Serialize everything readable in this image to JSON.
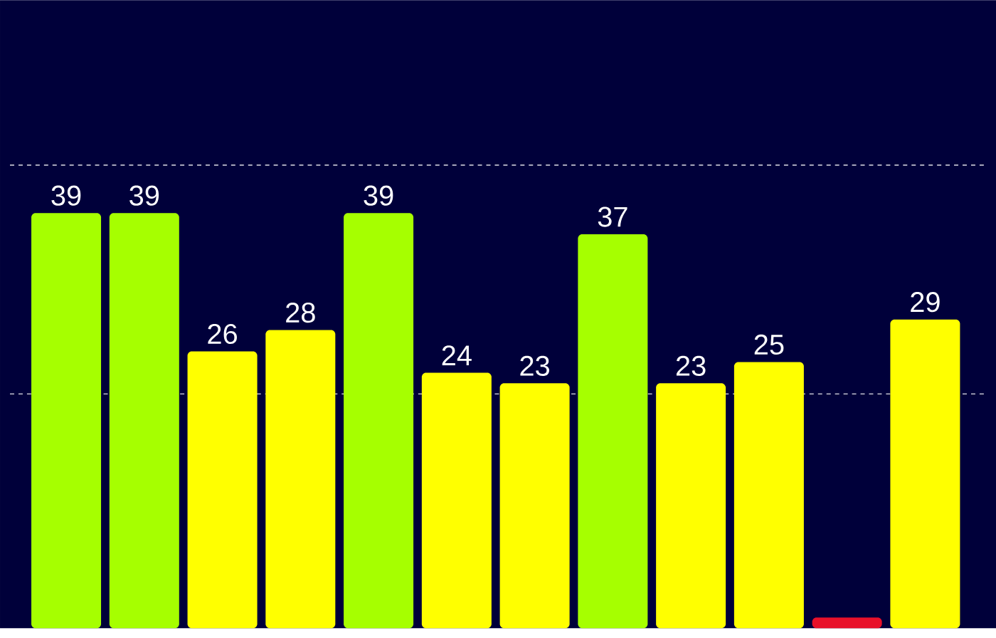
{
  "chart_data": {
    "type": "bar",
    "categories": [
      null,
      null,
      null,
      null,
      null,
      null,
      null,
      null,
      null,
      null,
      null,
      null
    ],
    "values": [
      39,
      39,
      26,
      28,
      39,
      24,
      23,
      37,
      23,
      25,
      1,
      29
    ],
    "colors": [
      "#a6ff00",
      "#a6ff00",
      "#ffff00",
      "#ffff00",
      "#a6ff00",
      "#ffff00",
      "#ffff00",
      "#a6ff00",
      "#ffff00",
      "#ffff00",
      "#e8102a",
      "#ffff00"
    ],
    "value_labels": [
      "39",
      "39",
      "26",
      "28",
      "39",
      "24",
      "23",
      "37",
      "23",
      "25",
      null,
      "29"
    ],
    "ylim": [
      0,
      59
    ],
    "ref_lines": [
      {
        "axis": "y",
        "value": 22,
        "line_style": "dashed"
      },
      {
        "axis": "y",
        "value": 43.5,
        "line_style": "dashed"
      }
    ]
  }
}
